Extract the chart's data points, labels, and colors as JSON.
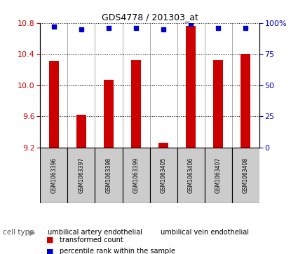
{
  "title": "GDS4778 / 201303_at",
  "samples": [
    "GSM1063396",
    "GSM1063397",
    "GSM1063398",
    "GSM1063399",
    "GSM1063405",
    "GSM1063406",
    "GSM1063407",
    "GSM1063408"
  ],
  "bar_values": [
    10.31,
    9.62,
    10.07,
    10.32,
    9.26,
    10.76,
    10.32,
    10.4
  ],
  "percentile_values": [
    97,
    95,
    96,
    96,
    95,
    99,
    96,
    96
  ],
  "ylim_left": [
    9.2,
    10.8
  ],
  "ylim_right": [
    0,
    100
  ],
  "yticks_left": [
    9.2,
    9.6,
    10.0,
    10.4,
    10.8
  ],
  "yticks_right": [
    0,
    25,
    50,
    75,
    100
  ],
  "bar_color": "#cc0000",
  "dot_color": "#0000cc",
  "cell_groups": [
    {
      "label": "umbilical artery endothelial",
      "start": 0,
      "end": 4,
      "color": "#66dd66"
    },
    {
      "label": "umbilical vein endothelial",
      "start": 4,
      "end": 8,
      "color": "#66dd66"
    }
  ],
  "cell_type_label": "cell type",
  "legend_bar_label": "transformed count",
  "legend_dot_label": "percentile rank within the sample",
  "background_color": "#ffffff",
  "tick_label_color_left": "#cc0000",
  "tick_label_color_right": "#0000cc",
  "bar_bottom": 9.2,
  "sample_box_color": "#cccccc",
  "sample_box_edge": "#888888"
}
